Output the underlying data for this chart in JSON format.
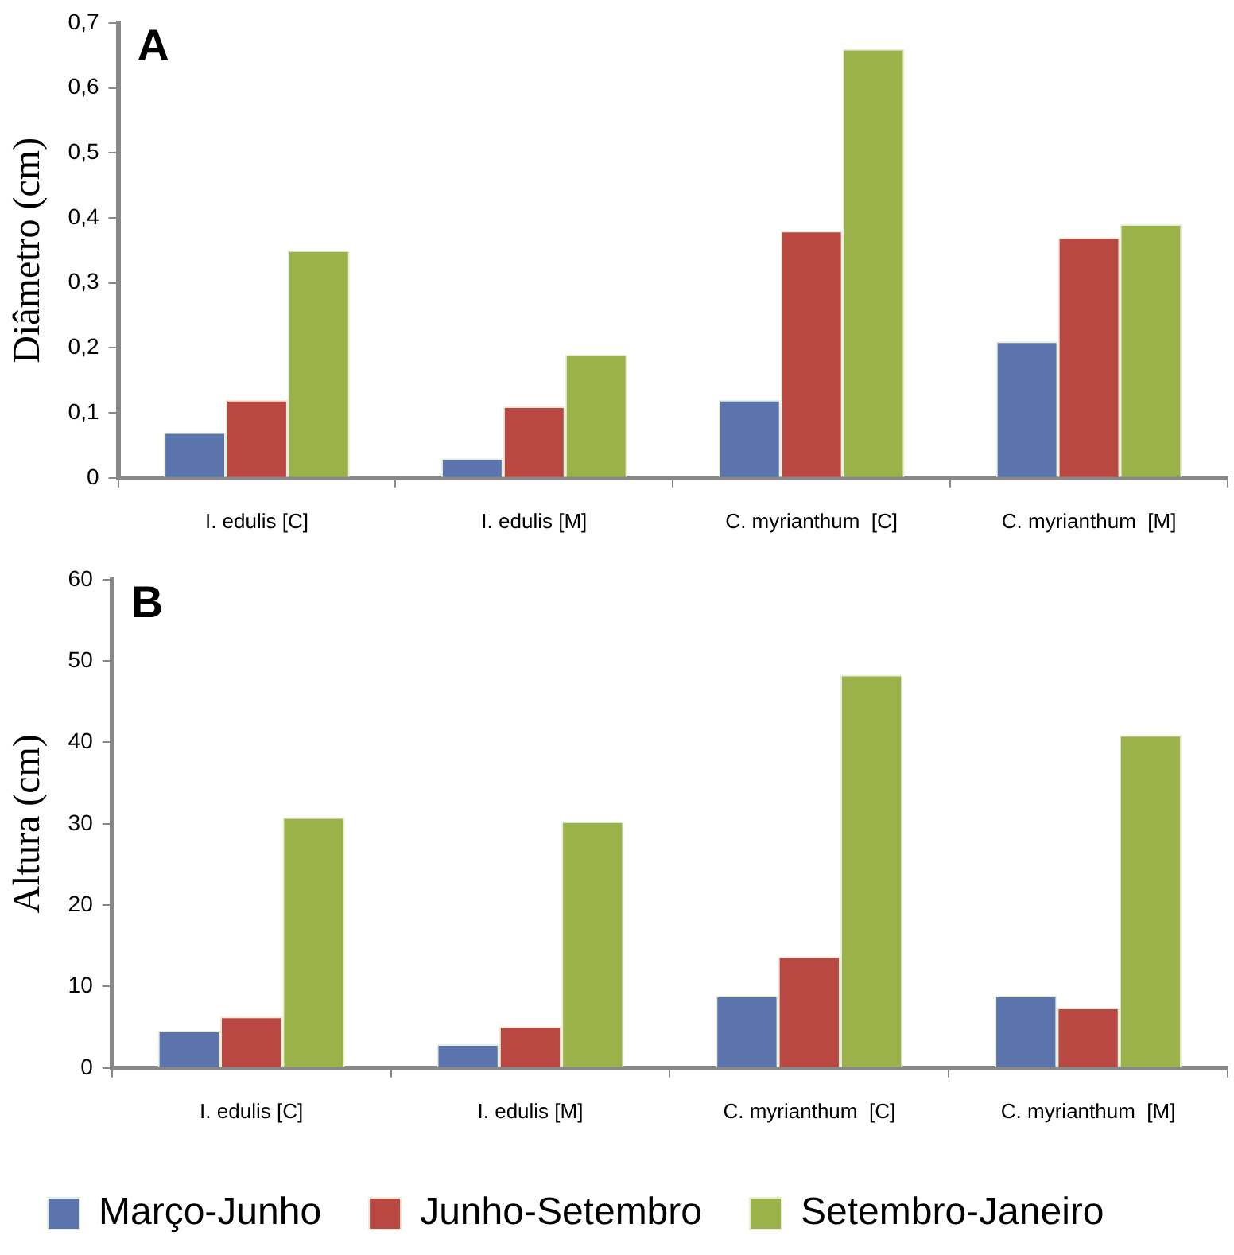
{
  "chart_data": [
    {
      "type": "bar",
      "title": "A",
      "ylabel": "Diâmetro (cm)",
      "categories": [
        "I. edulis [C]",
        "I. edulis [M]",
        "C. myrianthum  [C]",
        "C. myrianthum  [M]"
      ],
      "series": [
        {
          "color": "#5b74ad",
          "values": [
            0.07,
            0.03,
            0.12,
            0.21
          ]
        },
        {
          "color": "#b94843",
          "values": [
            0.12,
            0.11,
            0.38,
            0.37
          ]
        },
        {
          "color": "#9bb24a",
          "values": [
            0.35,
            0.19,
            0.66,
            0.39
          ]
        }
      ],
      "ylim": [
        0,
        0.7
      ],
      "yticks": [
        0,
        {
          "value": 0.1,
          "label": "0,1"
        },
        {
          "value": 0.2,
          "label": "0,2"
        },
        {
          "value": 0.3,
          "label": "0,3"
        },
        {
          "value": 0.4,
          "label": "0,4"
        },
        {
          "value": 0.5,
          "label": "0,5"
        },
        {
          "value": 0.6,
          "label": "0,6"
        },
        {
          "value": 0.7,
          "label": "0,7"
        }
      ],
      "grid": false,
      "legend": false
    },
    {
      "type": "bar",
      "title": "B",
      "ylabel": "Altura (cm)",
      "categories": [
        "I. edulis [C]",
        "I. edulis [M]",
        "C. myrianthum  [C]",
        "C. myrianthum  [M]"
      ],
      "series": [
        {
          "name": "Março-Junho",
          "color": "#5b74ad",
          "values": [
            4.6,
            2.9,
            8.9,
            8.9
          ]
        },
        {
          "name": "Junho-Setembro",
          "color": "#b94843",
          "values": [
            6.3,
            5.1,
            13.7,
            7.4
          ]
        },
        {
          "name": "Setembro-Janeiro",
          "color": "#9bb24a",
          "values": [
            30.8,
            30.3,
            48.3,
            40.9
          ]
        }
      ],
      "ylim": [
        0,
        60
      ],
      "yticks": [
        0,
        10,
        20,
        30,
        40,
        50,
        60
      ],
      "grid": false,
      "legend": "bottom"
    }
  ]
}
